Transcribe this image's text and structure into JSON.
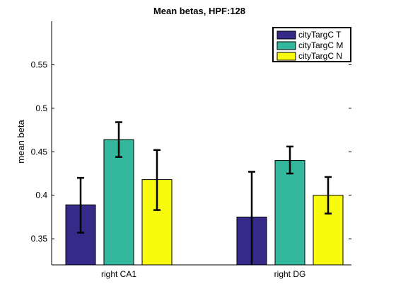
{
  "chart_data": {
    "type": "bar",
    "title": "Mean betas, HPF:128",
    "xlabel": "",
    "ylabel": "mean beta",
    "categories": [
      "right CA1",
      "right DG"
    ],
    "ylim": [
      0.32,
      0.6
    ],
    "yticks": [
      "0.35",
      "0.4",
      "0.45",
      "0.5",
      "0.55"
    ],
    "grid": false,
    "legend_position": "top-right",
    "series": [
      {
        "name": "cityTargC T",
        "color": "#352a87",
        "values": [
          0.389,
          0.375
        ],
        "error_low": [
          0.357,
          0.32
        ],
        "error_high": [
          0.42,
          0.427
        ]
      },
      {
        "name": "cityTargC M",
        "color": "#33b89e",
        "values": [
          0.464,
          0.44
        ],
        "error_low": [
          0.444,
          0.425
        ],
        "error_high": [
          0.484,
          0.456
        ]
      },
      {
        "name": "cityTargC N",
        "color": "#f9fb0e",
        "values": [
          0.418,
          0.4
        ],
        "error_low": [
          0.383,
          0.379
        ],
        "error_high": [
          0.452,
          0.421
        ]
      }
    ]
  }
}
